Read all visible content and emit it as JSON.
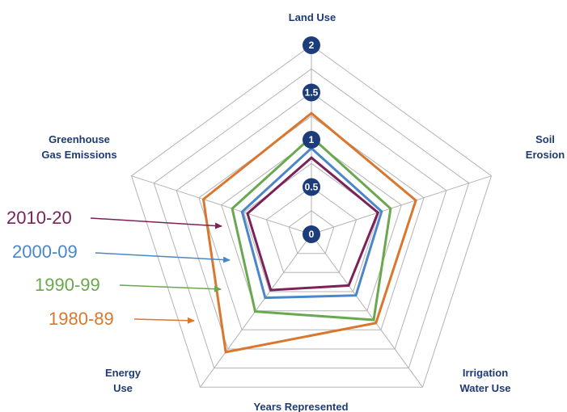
{
  "chart_data": {
    "type": "radar",
    "title": "",
    "caption": "Years Represented",
    "axes": [
      {
        "label_lines": [
          "Land Use"
        ]
      },
      {
        "label_lines": [
          "Soil",
          "Erosion"
        ]
      },
      {
        "label_lines": [
          "Irrigation",
          "Water Use"
        ]
      },
      {
        "label_lines": [
          "Energy",
          "Use"
        ]
      },
      {
        "label_lines": [
          "Greenhouse",
          "Gas Emissions"
        ]
      }
    ],
    "axis_names": [
      "Land Use",
      "Soil Erosion",
      "Irrigation Water Use",
      "Energy Use",
      "Greenhouse Gas Emissions"
    ],
    "r_range": [
      0,
      2
    ],
    "ticks": [
      {
        "value": 0,
        "label": "0"
      },
      {
        "value": 0.5,
        "label": "0.5"
      },
      {
        "value": 1,
        "label": "1"
      },
      {
        "value": 1.5,
        "label": "1.5"
      },
      {
        "value": 2,
        "label": "2"
      }
    ],
    "grid": true,
    "series": [
      {
        "name": "2010-20",
        "color": "#7b2259",
        "values": [
          0.81,
          0.74,
          0.67,
          0.73,
          0.71
        ]
      },
      {
        "name": "2000-09",
        "color": "#4a86c8",
        "values": [
          0.91,
          0.78,
          0.8,
          0.83,
          0.77
        ]
      },
      {
        "name": "1990-99",
        "color": "#6aa84f",
        "values": [
          1.03,
          0.88,
          1.12,
          1.01,
          0.88
        ]
      },
      {
        "name": "1980-89",
        "color": "#d9772f",
        "values": [
          1.28,
          1.16,
          1.16,
          1.54,
          1.2
        ]
      }
    ]
  }
}
